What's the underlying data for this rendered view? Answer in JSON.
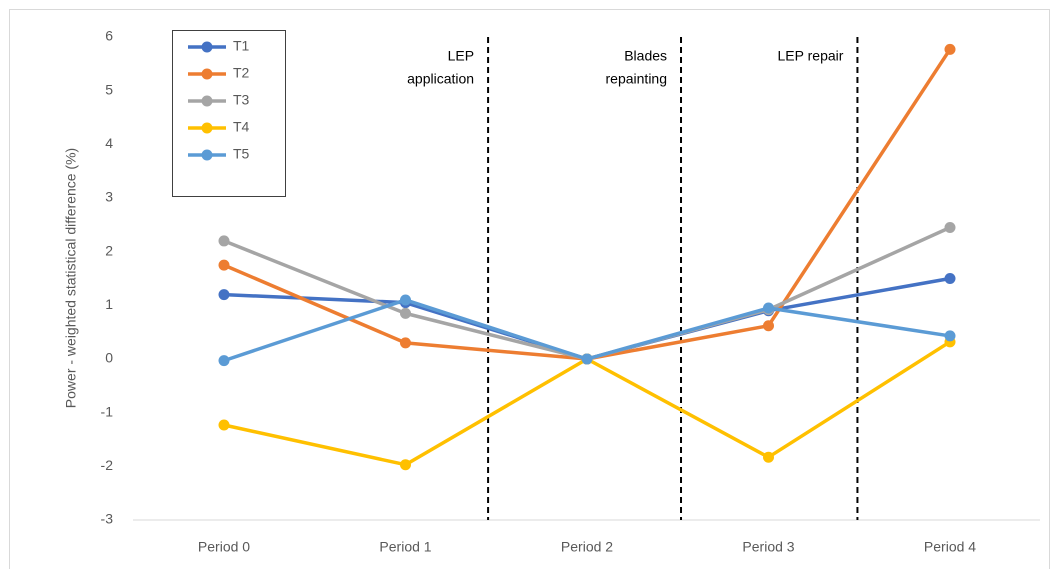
{
  "chart_data": {
    "type": "line",
    "y_label": "Power - weighted statistical difference (%)",
    "categories": [
      "Period 0",
      "Period 1",
      "Period 2",
      "Period 3",
      "Period 4"
    ],
    "series": [
      {
        "name": "T1",
        "color": "#4472c4",
        "values": [
          1.2,
          1.05,
          0,
          0.9,
          1.5
        ]
      },
      {
        "name": "T2",
        "color": "#ed7d31",
        "values": [
          1.75,
          0.3,
          0,
          0.62,
          5.77
        ]
      },
      {
        "name": "T3",
        "color": "#a5a5a5",
        "values": [
          2.2,
          0.85,
          0,
          0.92,
          2.45
        ]
      },
      {
        "name": "T4",
        "color": "#ffc000",
        "values": [
          -1.23,
          -1.97,
          0,
          -1.83,
          0.32
        ]
      },
      {
        "name": "T5",
        "color": "#5b9bd5",
        "values": [
          -0.03,
          1.1,
          0,
          0.95,
          0.43
        ]
      }
    ],
    "annotations": [
      [
        "LEP",
        "application"
      ],
      [
        "Blades",
        "repainting"
      ],
      [
        "LEP repair"
      ]
    ],
    "ylim": [
      -3,
      6
    ],
    "yticks": [
      -3,
      -2,
      -1,
      0,
      1,
      2,
      3,
      4,
      5,
      6
    ],
    "grid": false,
    "legend": "upper-left"
  }
}
